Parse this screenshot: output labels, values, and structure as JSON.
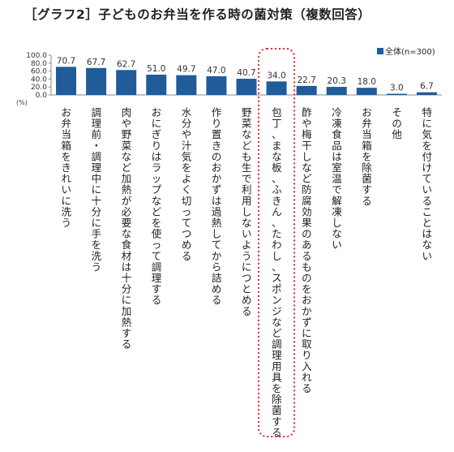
{
  "chart_data": {
    "type": "bar",
    "title": "［グラフ2］子どものお弁当を作る時の菌対策（複数回答）",
    "unit": "(%)",
    "legend": {
      "label": "全体(n=300)",
      "color": "#1f5c99",
      "position": "top-right"
    },
    "ylim": [
      0,
      100
    ],
    "yticks": [
      "0.0",
      "20.0",
      "40.0",
      "60.0",
      "80.0",
      "100.0"
    ],
    "grid": false,
    "categories": [
      "お弁当箱をきれいに洗う",
      "調理前・調理中に十分に手を洗う",
      "肉や野菜など加熱が必要な食材は十分に加熱する",
      "おにぎりはラップなどを使って調理する",
      "水分や汁気をよく切ってつめる",
      "作り置きのおかずは過熱してから詰める",
      "野菜なども生で利用しないようにつとめる",
      "包丁、まな板、ふきん、たわし、スポンジなど調理用具を除菌する",
      "酢や梅干しなど防腐効果のあるものをおかずに取り入れる",
      "冷凍食品は室温で解凍しない",
      "お弁当箱を除菌する",
      "その他",
      "特に気を付けていることはない"
    ],
    "value_labels": [
      "70.7",
      "67.7",
      "62.7",
      "51.0",
      "49.7",
      "47.0",
      "40.7",
      "34.0",
      "22.7",
      "20.3",
      "18.0",
      "3.0",
      "6.7"
    ],
    "values": [
      70.7,
      67.7,
      62.7,
      51.0,
      49.7,
      47.0,
      40.7,
      34.0,
      22.7,
      20.3,
      18.0,
      3.0,
      6.7
    ],
    "highlight_index": 7,
    "highlight_color": "#e0242a"
  }
}
